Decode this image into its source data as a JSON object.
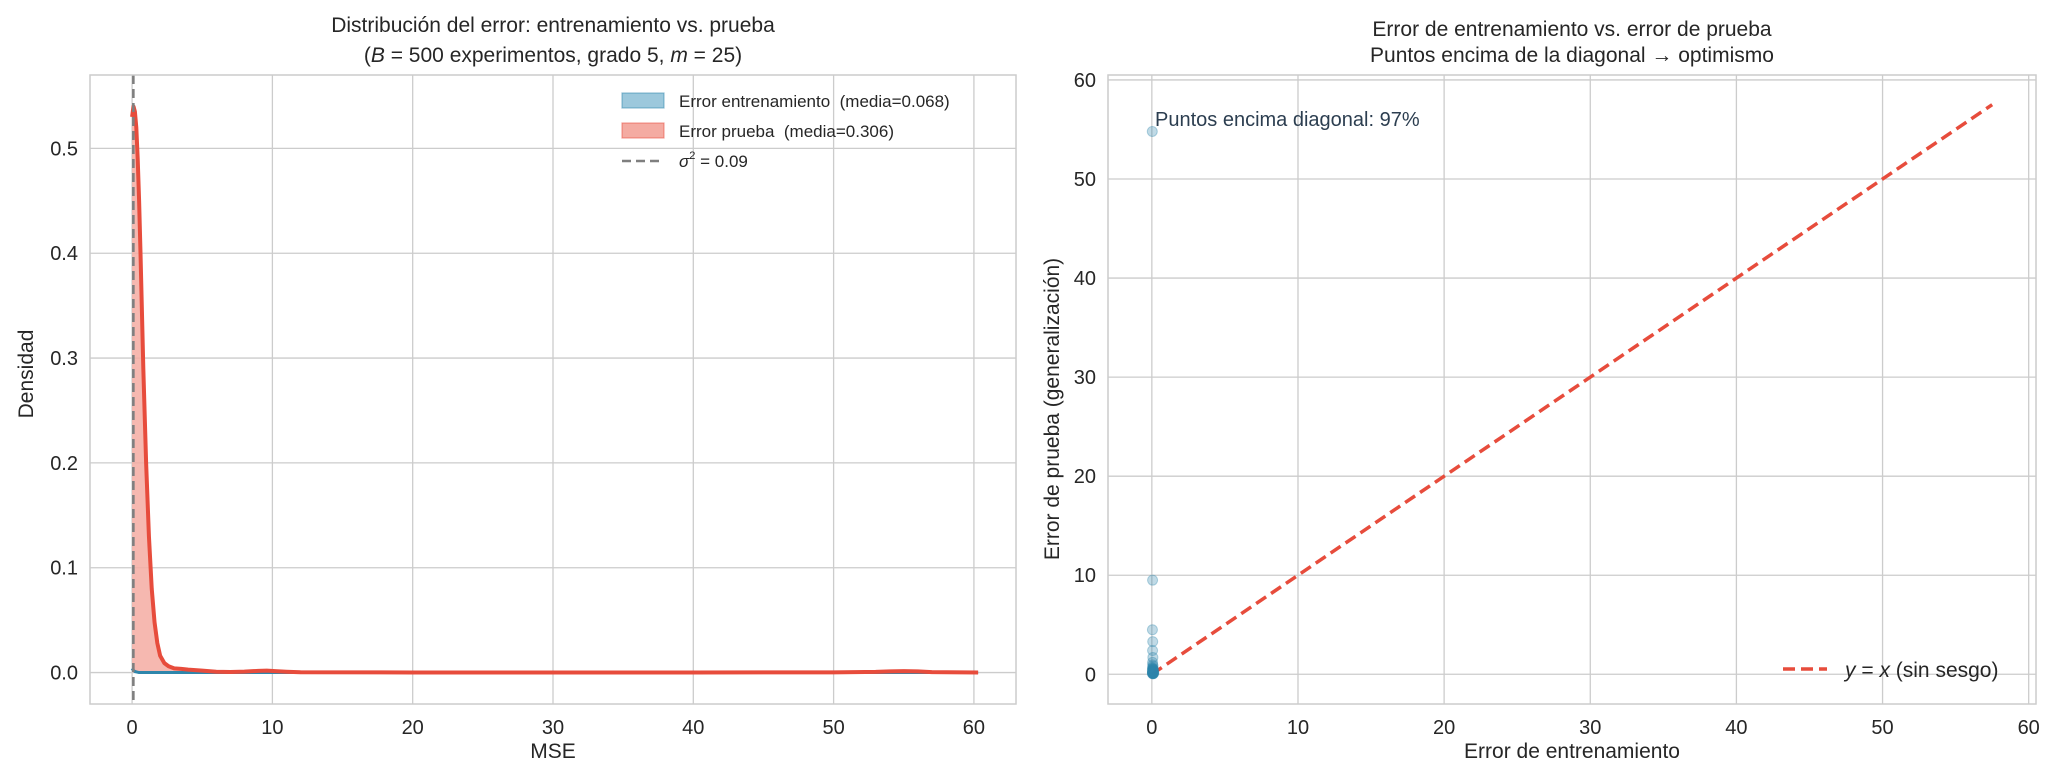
{
  "chart_data": [
    {
      "type": "area",
      "title_line1": "Distribución del error: entrenamiento vs. prueba",
      "title_line2_prefix": "(",
      "title_B": "B",
      "title_B_value": " = 500",
      "title_mid": " experimentos, grado 5, ",
      "title_m": "m",
      "title_m_value": " = 25",
      "title_line2_suffix": ")",
      "xlabel": "MSE",
      "ylabel": "Densidad",
      "xlim": [
        -3,
        63
      ],
      "ylim": [
        -0.03,
        0.57
      ],
      "xticks": [
        0,
        10,
        20,
        30,
        40,
        50,
        60
      ],
      "yticks": [
        0.0,
        0.1,
        0.2,
        0.3,
        0.4,
        0.5
      ],
      "grid": true,
      "legend_position": "top-right",
      "series": [
        {
          "name": "Error entrenamiento  (media=0.068)",
          "color": "#2e86ab",
          "fill_color": "#9cc8dc",
          "x": [
            0,
            0.1,
            0.2,
            0.35,
            0.5,
            60.3
          ],
          "y": [
            0.004,
            0.002,
            0.001,
            0.0005,
            0,
            0
          ]
        },
        {
          "name": "Error prueba  (media=0.306)",
          "color": "#e74c3c",
          "fill_color": "#f4aba2",
          "x": [
            0,
            0.1,
            0.2,
            0.3,
            0.4,
            0.5,
            0.6,
            0.7,
            0.8,
            1.0,
            1.2,
            1.4,
            1.6,
            1.8,
            2.0,
            2.3,
            2.6,
            3.0,
            3.5,
            4.0,
            5.0,
            6.0,
            7.0,
            8.0,
            9.0,
            9.6,
            10.2,
            11.0,
            12.0,
            20,
            30,
            40,
            50,
            53,
            54,
            55,
            56,
            57,
            60.3
          ],
          "y": [
            0.53,
            0.54,
            0.535,
            0.52,
            0.49,
            0.45,
            0.4,
            0.345,
            0.29,
            0.2,
            0.13,
            0.08,
            0.048,
            0.028,
            0.016,
            0.009,
            0.006,
            0.004,
            0.0035,
            0.0028,
            0.0018,
            0.0008,
            0.0005,
            0.0009,
            0.0016,
            0.0018,
            0.0014,
            0.0008,
            0.0003,
            0.0001,
            0.0001,
            0.0001,
            0.0002,
            0.0006,
            0.0011,
            0.0013,
            0.0011,
            0.0004,
            0.0001
          ]
        }
      ],
      "reference_line": {
        "name": "σ² = 0.09",
        "name_symbol": "σ",
        "name_sup": "2",
        "name_value": " = 0.09",
        "x": 0.09,
        "color": "#7f7f7f",
        "style": "dashed"
      }
    },
    {
      "type": "scatter",
      "title_line1": "Error de entrenamiento vs. error de prueba",
      "title_line2": "Puntos encima de la diagonal → optimismo",
      "xlabel": "Error de entrenamiento",
      "ylabel": "Error de prueba (generalización)",
      "xlim": [
        -3,
        60.5
      ],
      "ylim": [
        -3,
        60.5
      ],
      "xticks": [
        0,
        10,
        20,
        30,
        40,
        50,
        60
      ],
      "yticks": [
        0,
        10,
        20,
        30,
        40,
        50,
        60
      ],
      "grid": true,
      "legend_position": "bottom-right",
      "annotation": "Puntos encima diagonal: 97%",
      "points_color": "#2e86ab",
      "points": [
        [
          0.03,
          54.8
        ],
        [
          0.05,
          9.5
        ],
        [
          0.04,
          4.5
        ],
        [
          0.06,
          3.3
        ],
        [
          0.05,
          2.4
        ],
        [
          0.07,
          1.7
        ],
        [
          0.05,
          1.2
        ],
        [
          0.06,
          0.95
        ],
        [
          0.08,
          0.8
        ],
        [
          0.05,
          0.65
        ],
        [
          0.07,
          0.55
        ],
        [
          0.06,
          0.48
        ],
        [
          0.09,
          0.42
        ],
        [
          0.04,
          0.38
        ],
        [
          0.08,
          0.34
        ],
        [
          0.06,
          0.3
        ],
        [
          0.1,
          0.27
        ],
        [
          0.05,
          0.24
        ],
        [
          0.07,
          0.21
        ],
        [
          0.09,
          0.19
        ],
        [
          0.06,
          0.17
        ],
        [
          0.08,
          0.15
        ],
        [
          0.05,
          0.13
        ],
        [
          0.11,
          0.12
        ],
        [
          0.07,
          0.1
        ],
        [
          0.09,
          0.09
        ],
        [
          0.06,
          0.08
        ],
        [
          0.08,
          0.07
        ],
        [
          0.1,
          0.06
        ],
        [
          0.05,
          0.05
        ],
        [
          0.12,
          0.11
        ],
        [
          0.13,
          0.2
        ],
        [
          0.04,
          0.14
        ],
        [
          0.07,
          0.33
        ],
        [
          0.09,
          0.5
        ],
        [
          0.06,
          0.6
        ],
        [
          0.1,
          0.36
        ],
        [
          0.08,
          0.26
        ],
        [
          0.11,
          0.18
        ],
        [
          0.05,
          0.09
        ]
      ],
      "diagonal": {
        "name": "y = x (sin sesgo)",
        "name_y": "y",
        "name_eq": " = ",
        "name_x": "x",
        "name_rest": " (sin sesgo)",
        "from": [
          0,
          0
        ],
        "to": [
          57.5,
          57.5
        ],
        "color": "#e74c3c",
        "style": "dashed"
      }
    }
  ]
}
